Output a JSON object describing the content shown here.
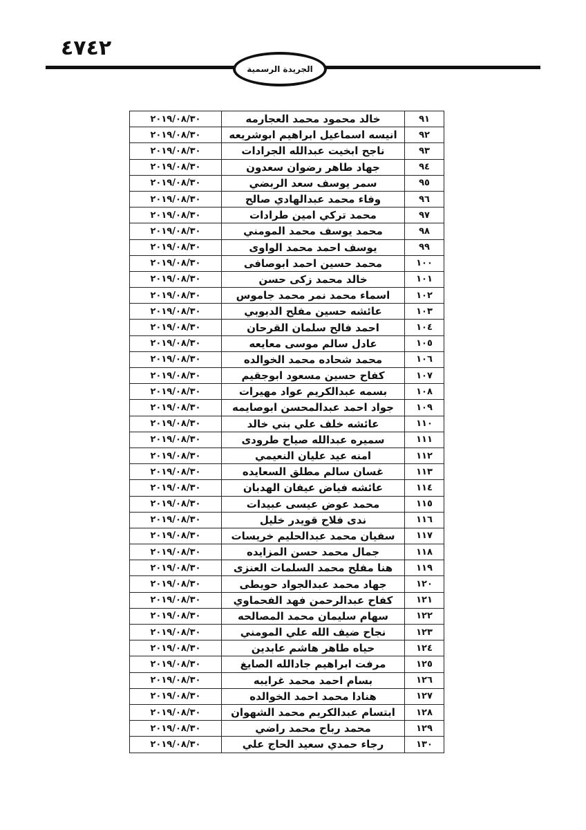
{
  "header": {
    "page_number": "٤٧٤٢",
    "title": "الجريدة الرسمية"
  },
  "table": {
    "rows": [
      {
        "num": "٩١",
        "name": "خالد محمود محمد العجارمه",
        "date": "٢٠١٩/٠٨/٣٠"
      },
      {
        "num": "٩٢",
        "name": "انيسه اسماعيل ابراهيم ابوشريعه",
        "date": "٢٠١٩/٠٨/٣٠"
      },
      {
        "num": "٩٣",
        "name": "ناجح ابخيت عبدالله الجرادات",
        "date": "٢٠١٩/٠٨/٣٠"
      },
      {
        "num": "٩٤",
        "name": "جهاد طاهر رضوان سعدون",
        "date": "٢٠١٩/٠٨/٣٠"
      },
      {
        "num": "٩٥",
        "name": "سمر يوسف سعد الربضي",
        "date": "٢٠١٩/٠٨/٣٠"
      },
      {
        "num": "٩٦",
        "name": "وفاء محمد عبدالهادي صالح",
        "date": "٢٠١٩/٠٨/٣٠"
      },
      {
        "num": "٩٧",
        "name": "محمد تركي امين طرادات",
        "date": "٢٠١٩/٠٨/٣٠"
      },
      {
        "num": "٩٨",
        "name": "محمد يوسف محمد المومني",
        "date": "٢٠١٩/٠٨/٣٠"
      },
      {
        "num": "٩٩",
        "name": "يوسف احمد محمد الواوى",
        "date": "٢٠١٩/٠٨/٣٠"
      },
      {
        "num": "١٠٠",
        "name": "محمد حسين احمد ابوصافى",
        "date": "٢٠١٩/٠٨/٣٠"
      },
      {
        "num": "١٠١",
        "name": "خالد محمد زكى حسن",
        "date": "٢٠١٩/٠٨/٣٠"
      },
      {
        "num": "١٠٢",
        "name": "اسماء محمد نمر محمد جاموس",
        "date": "٢٠١٩/٠٨/٣٠"
      },
      {
        "num": "١٠٣",
        "name": "عائشه حسين مفلح الدبوبي",
        "date": "٢٠١٩/٠٨/٣٠"
      },
      {
        "num": "١٠٤",
        "name": "احمد فالح سلمان القرحان",
        "date": "٢٠١٩/٠٨/٣٠"
      },
      {
        "num": "١٠٥",
        "name": "عادل سالم موسى معايعه",
        "date": "٢٠١٩/٠٨/٣٠"
      },
      {
        "num": "١٠٦",
        "name": "محمد شحاده محمد الخوالده",
        "date": "٢٠١٩/٠٨/٣٠"
      },
      {
        "num": "١٠٧",
        "name": "كفاح حسين مسعود ابوجقيم",
        "date": "٢٠١٩/٠٨/٣٠"
      },
      {
        "num": "١٠٨",
        "name": "بسمه عبدالكريم عواد مهيرات",
        "date": "٢٠١٩/٠٨/٣٠"
      },
      {
        "num": "١٠٩",
        "name": "جواد احمد عبدالمحسن ابوصايمه",
        "date": "٢٠١٩/٠٨/٣٠"
      },
      {
        "num": "١١٠",
        "name": "عائشه خلف علي بني خالد",
        "date": "٢٠١٩/٠٨/٣٠"
      },
      {
        "num": "١١١",
        "name": "سميره عبدالله صياح طرودى",
        "date": "٢٠١٩/٠٨/٣٠"
      },
      {
        "num": "١١٢",
        "name": "امنه عيد عليان النعيمي",
        "date": "٢٠١٩/٠٨/٣٠"
      },
      {
        "num": "١١٣",
        "name": "غسان سالم مطلق السعايده",
        "date": "٢٠١٩/٠٨/٣٠"
      },
      {
        "num": "١١٤",
        "name": "عائشه فياض عيفان الهدبان",
        "date": "٢٠١٩/٠٨/٣٠"
      },
      {
        "num": "١١٥",
        "name": "محمد عوض عيسى عبيدات",
        "date": "٢٠١٩/٠٨/٣٠"
      },
      {
        "num": "١١٦",
        "name": "ندى فلاح قويدر خليل",
        "date": "٢٠١٩/٠٨/٣٠"
      },
      {
        "num": "١١٧",
        "name": "سفيان محمد عبدالحليم خريسات",
        "date": "٢٠١٩/٠٨/٣٠"
      },
      {
        "num": "١١٨",
        "name": "جمال محمد حسن المزايده",
        "date": "٢٠١٩/٠٨/٣٠"
      },
      {
        "num": "١١٩",
        "name": "هنا مفلح محمد السلمات العنزى",
        "date": "٢٠١٩/٠٨/٣٠"
      },
      {
        "num": "١٢٠",
        "name": "جهاد محمد عبدالجواد حويطى",
        "date": "٢٠١٩/٠٨/٣٠"
      },
      {
        "num": "١٢١",
        "name": "كفاح عبدالرحمن فهد الفحماوي",
        "date": "٢٠١٩/٠٨/٣٠"
      },
      {
        "num": "١٢٢",
        "name": "سهام سليمان محمد المصالحه",
        "date": "٢٠١٩/٠٨/٣٠"
      },
      {
        "num": "١٢٣",
        "name": "نجاح ضيف الله علي المومني",
        "date": "٢٠١٩/٠٨/٣٠"
      },
      {
        "num": "١٢٤",
        "name": "حياه طاهر هاشم عابدين",
        "date": "٢٠١٩/٠٨/٣٠"
      },
      {
        "num": "١٢٥",
        "name": "مرفت ابراهيم جادالله الصايغ",
        "date": "٢٠١٩/٠٨/٣٠"
      },
      {
        "num": "١٢٦",
        "name": "بسام احمد محمد غرايبه",
        "date": "٢٠١٩/٠٨/٣٠"
      },
      {
        "num": "١٢٧",
        "name": "هنادا محمد احمد الخوالده",
        "date": "٢٠١٩/٠٨/٣٠"
      },
      {
        "num": "١٢٨",
        "name": "ابتسام عبدالكريم محمد الشهوان",
        "date": "٢٠١٩/٠٨/٣٠"
      },
      {
        "num": "١٢٩",
        "name": "محمد رباح محمد راضي",
        "date": "٢٠١٩/٠٨/٣٠"
      },
      {
        "num": "١٣٠",
        "name": "رجاء حمدي سعيد الحاج علي",
        "date": "٢٠١٩/٠٨/٣٠"
      }
    ]
  }
}
